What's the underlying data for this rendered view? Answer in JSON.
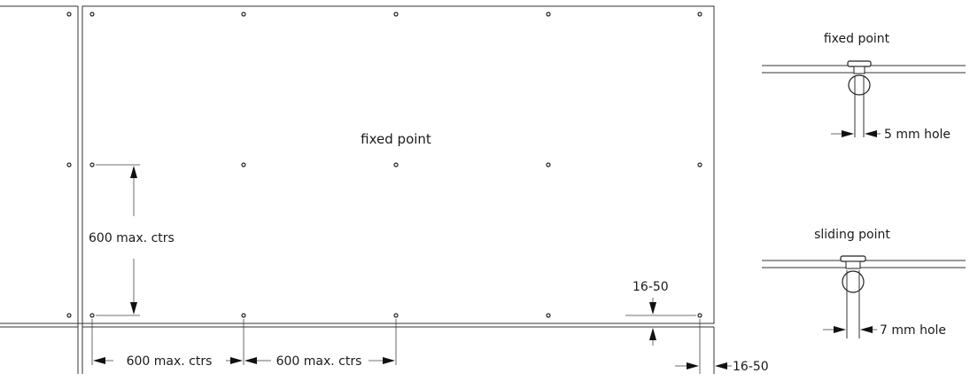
{
  "labels": {
    "fixed_point_center": "fixed point",
    "vertical_spacing": "600 max. ctrs",
    "horizontal_spacing_1": "600 max. ctrs",
    "horizontal_spacing_2": "600 max. ctrs",
    "edge_distance_vertical": "16-50",
    "edge_distance_horizontal": "16-50"
  },
  "details": {
    "fixed": {
      "title": "fixed point",
      "hole_label": "5 mm hole"
    },
    "sliding": {
      "title": "sliding point",
      "hole_label": "7 mm hole"
    }
  }
}
